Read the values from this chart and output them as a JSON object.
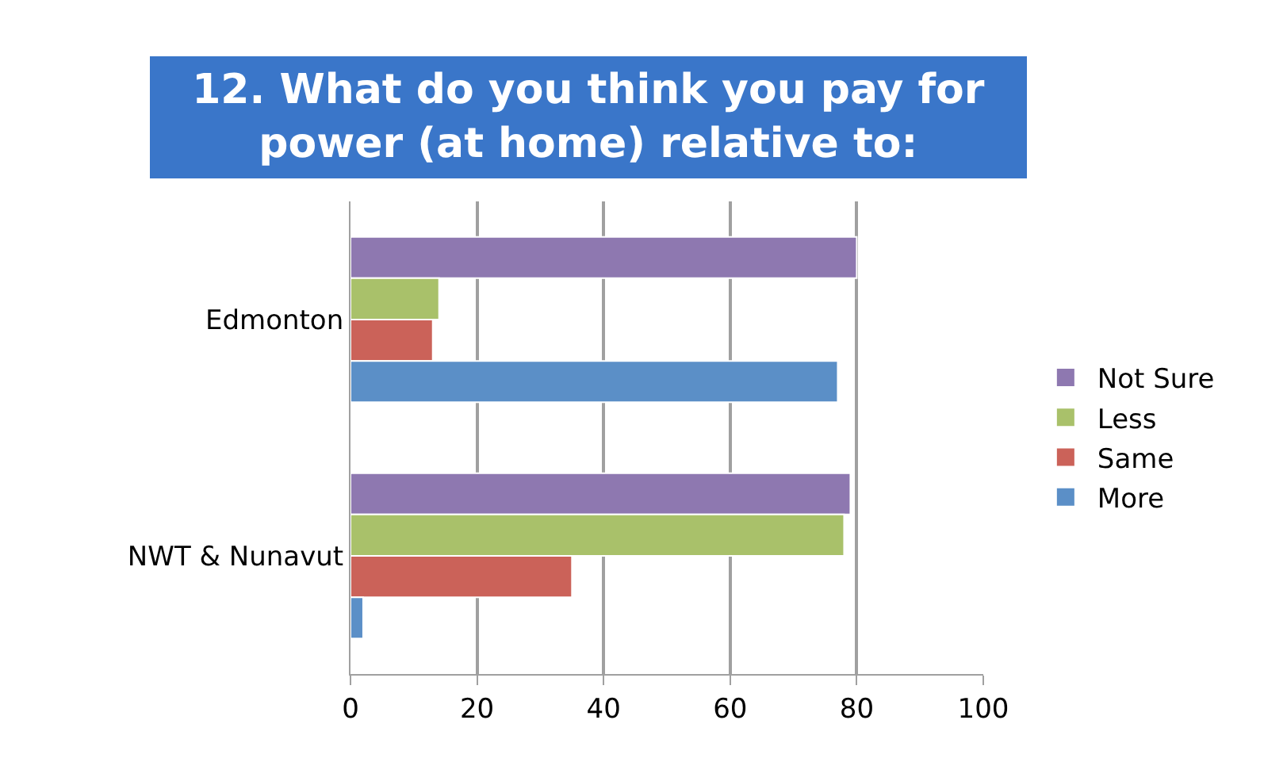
{
  "chart_data": {
    "type": "bar",
    "orientation": "horizontal",
    "title": "12. What do you think you pay for\npower (at home) relative to:",
    "categories": [
      "Edmonton",
      "NWT & Nunavut"
    ],
    "series": [
      {
        "name": "Not Sure",
        "color": "#8e78b0",
        "values": [
          80,
          79
        ]
      },
      {
        "name": "Less",
        "color": "#a9c16a",
        "values": [
          14,
          78
        ]
      },
      {
        "name": "Same",
        "color": "#cb6259",
        "values": [
          13,
          35
        ]
      },
      {
        "name": "More",
        "color": "#5b8fc7",
        "values": [
          77,
          2
        ]
      }
    ],
    "xlim": [
      0,
      100
    ],
    "xticks": [
      0,
      20,
      40,
      60,
      80,
      100
    ],
    "grid": "x",
    "legend": "right"
  }
}
